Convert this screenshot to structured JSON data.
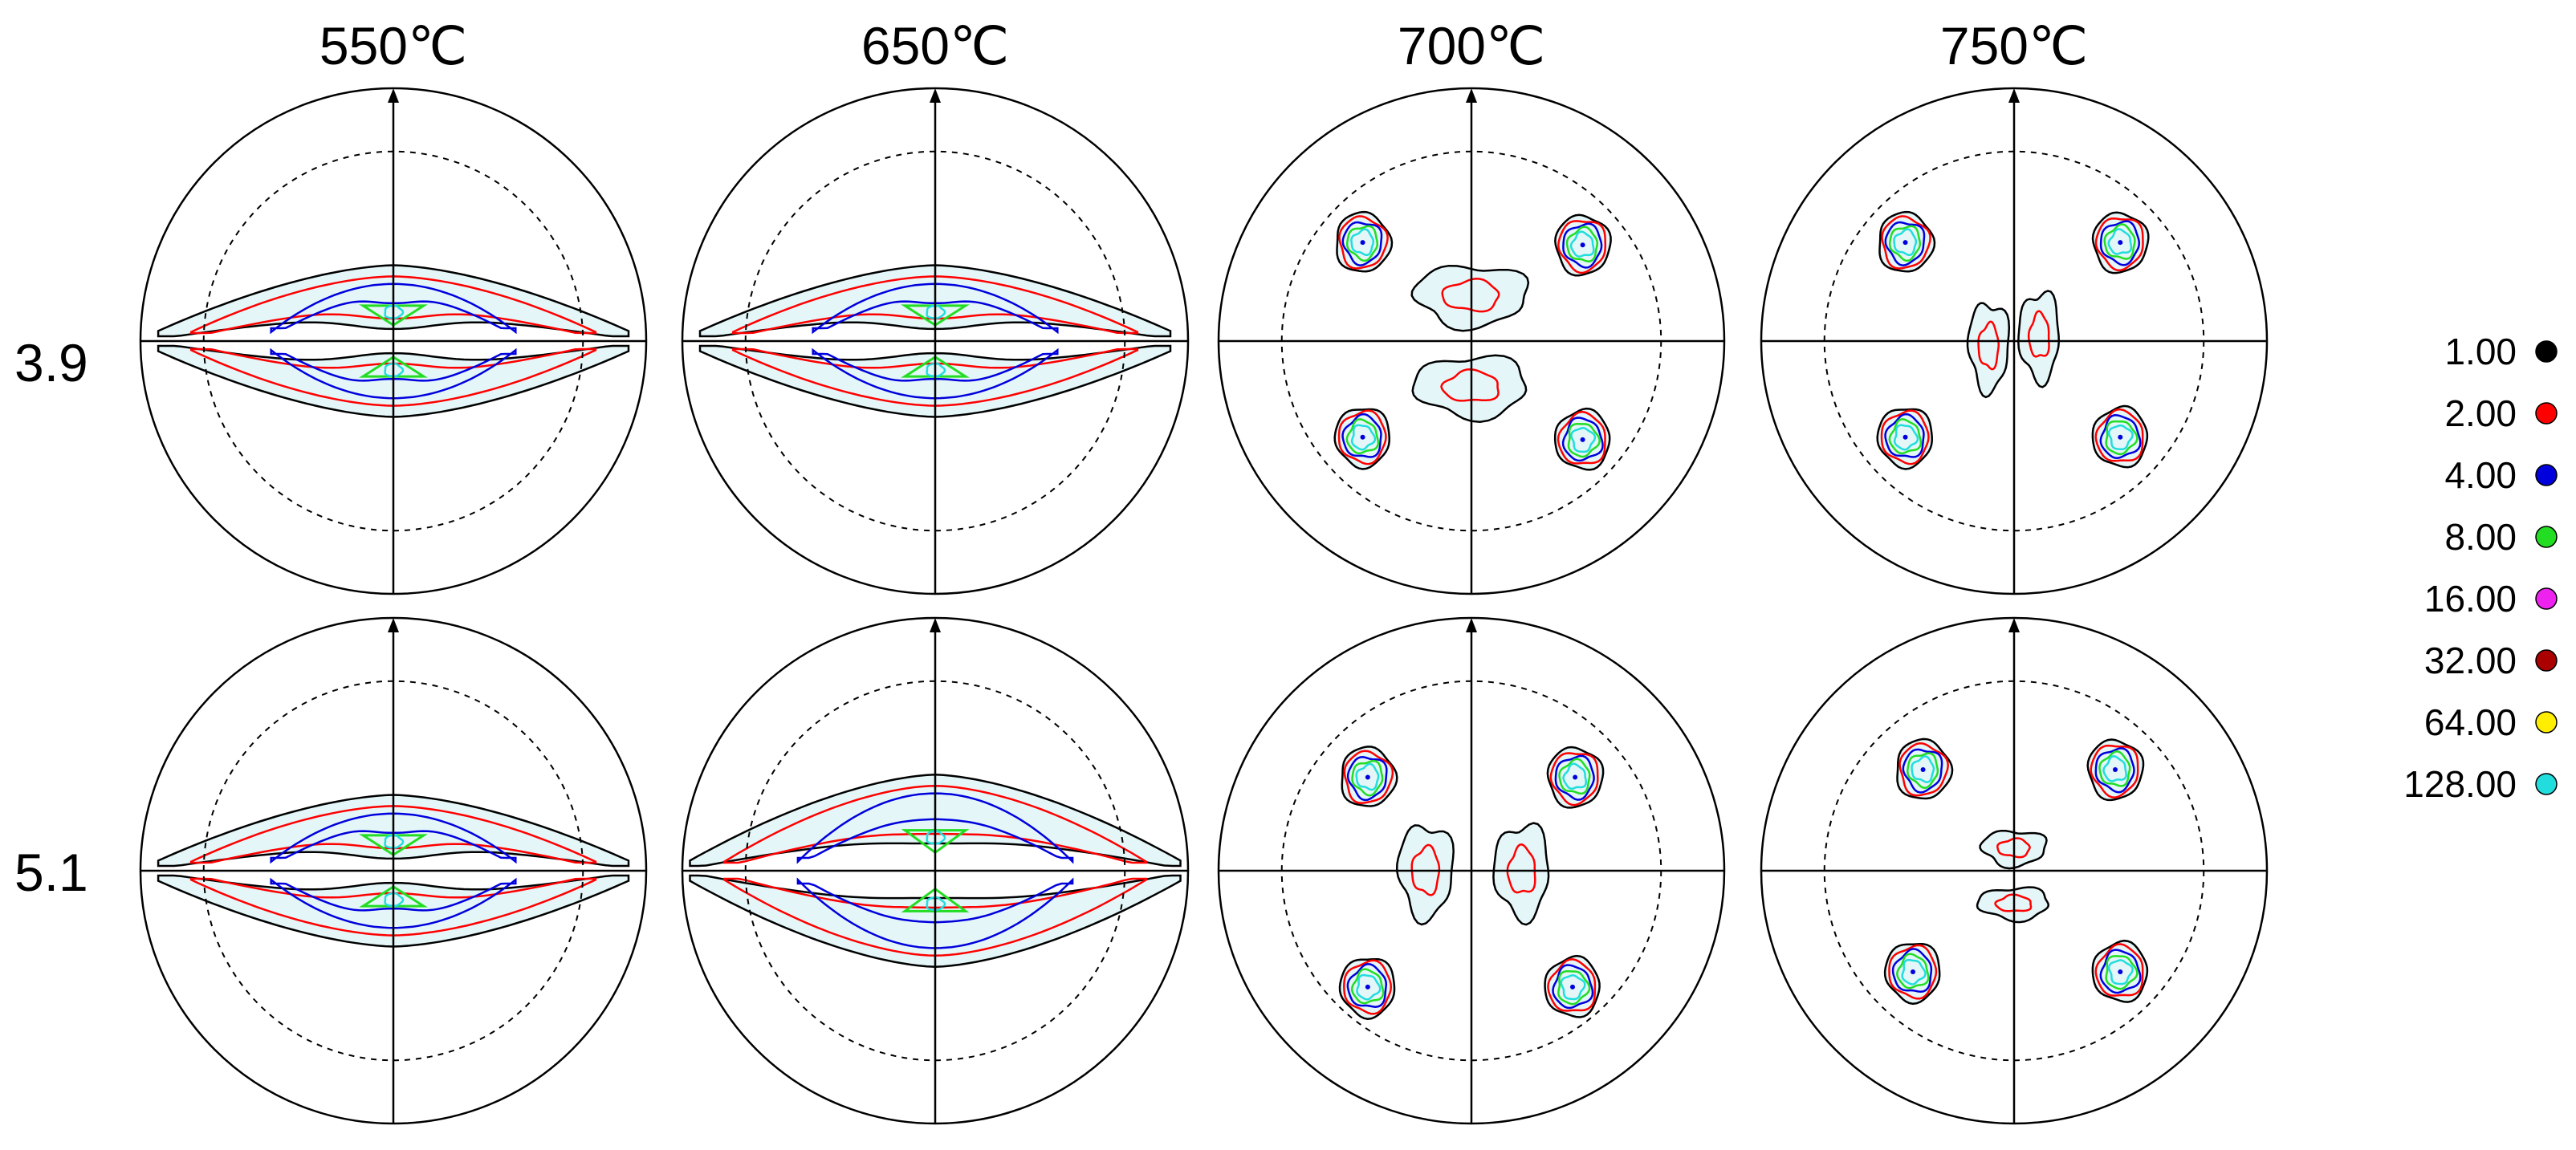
{
  "columns": [
    "550℃",
    "650℃",
    "700℃",
    "750℃"
  ],
  "rows": [
    "3.9",
    "5.1"
  ],
  "legend": [
    {
      "label": "1.00",
      "color": "#000000"
    },
    {
      "label": "2.00",
      "color": "#ff0000"
    },
    {
      "label": "4.00",
      "color": "#0000dd"
    },
    {
      "label": "8.00",
      "color": "#22dd22"
    },
    {
      "label": "16.00",
      "color": "#ee22ee"
    },
    {
      "label": "32.00",
      "color": "#aa0000"
    },
    {
      "label": "64.00",
      "color": "#ffee00"
    },
    {
      "label": "128.00",
      "color": "#22dddd"
    }
  ],
  "contour_colors": {
    "level_1": "#000000",
    "level_2": "#ff0000",
    "level_4": "#0000dd",
    "level_8": "#22dd22",
    "level_128": "#22dddd",
    "fill": "#e4f6f8"
  },
  "panels": [
    {
      "row": 0,
      "col": 0,
      "pattern": "band"
    },
    {
      "row": 0,
      "col": 1,
      "pattern": "band"
    },
    {
      "row": 0,
      "col": 2,
      "pattern": "four-spots-center-tilted"
    },
    {
      "row": 0,
      "col": 3,
      "pattern": "four-spots-center-vertical"
    },
    {
      "row": 1,
      "col": 0,
      "pattern": "band"
    },
    {
      "row": 1,
      "col": 1,
      "pattern": "band-wide"
    },
    {
      "row": 1,
      "col": 2,
      "pattern": "four-spots-vertical-pair"
    },
    {
      "row": 1,
      "col": 3,
      "pattern": "four-spots-center-small"
    }
  ]
}
